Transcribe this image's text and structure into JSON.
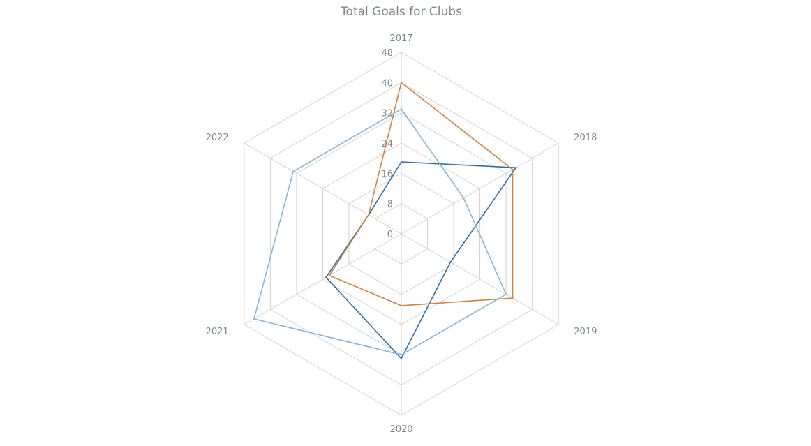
{
  "chart_data": {
    "type": "radar",
    "title": "Total Goals for Clubs",
    "categories": [
      "2017",
      "2018",
      "2019",
      "2020",
      "2021",
      "2022"
    ],
    "ticks": [
      0,
      8,
      16,
      24,
      32,
      40,
      48
    ],
    "rlim": [
      0,
      48
    ],
    "grid": true,
    "legend": "none",
    "series": [
      {
        "color": "#2c6faa",
        "values": [
          19,
          35,
          15,
          33,
          23,
          10
        ]
      },
      {
        "color": "#d0833d",
        "values": [
          40,
          34,
          34,
          19,
          22,
          10
        ]
      },
      {
        "color": "#83b6da",
        "values": [
          33,
          19,
          32,
          32,
          45,
          33
        ]
      }
    ]
  }
}
